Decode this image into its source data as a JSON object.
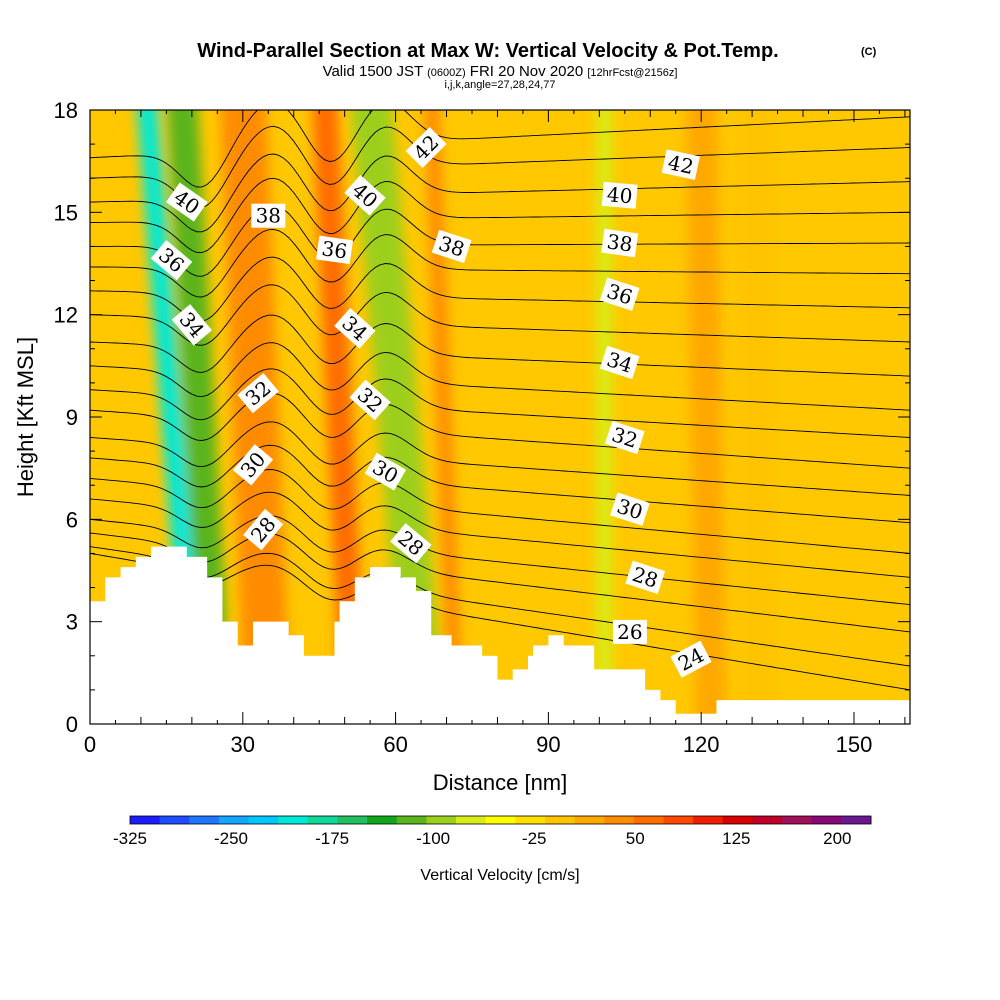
{
  "chart_data": {
    "type": "heatmap",
    "title": "Wind-Parallel Section at Max W: Vertical Velocity & Pot.Temp.",
    "title_mark": "(C)",
    "subtitle_main_a": "Valid 1500 JST",
    "subtitle_utc": "(0600Z)",
    "subtitle_main_b": "FRI 20 Nov 2020",
    "subtitle_fcst": "[12hrFcst@2156z]",
    "subtitle_indices": "i,j,k,angle=27,28,24,77",
    "xlabel": "Distance [nm]",
    "ylabel": "Height [Kft MSL]",
    "xlim": [
      0,
      161
    ],
    "ylim": [
      0,
      18
    ],
    "x_ticks": [
      0,
      30,
      60,
      90,
      120,
      150
    ],
    "x_tick_labels": [
      "0",
      "30",
      "60",
      "90",
      "120",
      "150"
    ],
    "y_ticks": [
      0,
      3,
      6,
      9,
      12,
      15,
      18
    ],
    "y_tick_labels": [
      "0",
      "3",
      "6",
      "9",
      "12",
      "15",
      "18"
    ],
    "colorbar": {
      "label": "Vertical Velocity [cm/s]",
      "min": -325,
      "max": 225,
      "step": 25,
      "tick_values": [
        -325,
        -250,
        -175,
        -100,
        -25,
        50,
        125,
        200
      ],
      "tick_labels": [
        "-325",
        "-250",
        "-175",
        "-100",
        "-25",
        "50",
        "125",
        "200"
      ],
      "colors": [
        "#1c1cff",
        "#1e4cff",
        "#1e78ff",
        "#12a6ff",
        "#00c8ff",
        "#00e8d8",
        "#10d898",
        "#22c060",
        "#10a81a",
        "#5ab41a",
        "#9ccf1c",
        "#d8ec18",
        "#ffff00",
        "#ffe000",
        "#ffc400",
        "#ffa800",
        "#ff8c00",
        "#ff6c00",
        "#ff4800",
        "#f01e00",
        "#d80000",
        "#c00028",
        "#a01058",
        "#880878",
        "#6a1890"
      ]
    },
    "velocity_bands": [
      {
        "x_top": 11,
        "x_bot": 21,
        "value": -180,
        "width": 4
      },
      {
        "x_top": 18,
        "x_bot": 25,
        "value": -80,
        "width": 6
      },
      {
        "x_top": 28,
        "x_bot": 33,
        "value": 150,
        "width": 4
      },
      {
        "x_top": 30,
        "x_bot": 35,
        "value": 90,
        "width": 9
      },
      {
        "x_top": 46,
        "x_bot": 52,
        "value": 110,
        "width": 5
      },
      {
        "x_top": 55,
        "x_bot": 64,
        "value": -165,
        "width": 4
      },
      {
        "x_top": 55,
        "x_bot": 66,
        "value": -70,
        "width": 8
      },
      {
        "x_top": 67,
        "x_bot": 72,
        "value": 90,
        "width": 3
      },
      {
        "x_top": 101,
        "x_bot": 101,
        "value": -35,
        "width": 3
      },
      {
        "x_top": 120,
        "x_bot": 122,
        "value": 55,
        "width": 6
      },
      {
        "x_top": 131,
        "x_bot": 131,
        "value": 25,
        "width": 7
      }
    ],
    "terrain": {
      "x": [
        0,
        3,
        3,
        6,
        6,
        9,
        9,
        12,
        12,
        19,
        19,
        23,
        23,
        26,
        26,
        29,
        29,
        32,
        32,
        39,
        39,
        42,
        42,
        48,
        48,
        49,
        49,
        52,
        52,
        55,
        55,
        61,
        61,
        64,
        64,
        67,
        67,
        71,
        71,
        77,
        77,
        80,
        80,
        83,
        83,
        86,
        86,
        87,
        87,
        90,
        90,
        93,
        93,
        99,
        99,
        109,
        109,
        112,
        112,
        115,
        115,
        118,
        118,
        123,
        123,
        141,
        141,
        161
      ],
      "h": [
        3.6,
        3.6,
        4.3,
        4.3,
        4.6,
        4.6,
        4.9,
        4.9,
        5.2,
        5.2,
        4.9,
        4.9,
        4.3,
        4.3,
        3.0,
        3.0,
        2.3,
        2.3,
        3.0,
        3.0,
        2.6,
        2.6,
        2.0,
        2.0,
        3.0,
        3.0,
        3.6,
        3.6,
        4.3,
        4.3,
        4.6,
        4.6,
        4.3,
        4.3,
        3.9,
        3.9,
        2.6,
        2.6,
        2.3,
        2.3,
        2.0,
        2.0,
        1.3,
        1.3,
        1.6,
        1.6,
        2.0,
        2.0,
        2.3,
        2.3,
        2.6,
        2.6,
        2.3,
        2.3,
        1.6,
        1.6,
        1.0,
        1.0,
        0.7,
        0.7,
        0.3,
        0.3,
        0.3,
        0.3,
        0.7,
        0.7,
        0.7,
        0.7
      ]
    },
    "theta_contours": {
      "levels": [
        24,
        25,
        26,
        27,
        28,
        29,
        30,
        31,
        32,
        33,
        34,
        35,
        36,
        37,
        38,
        39,
        40,
        41,
        42,
        43
      ],
      "start_heights": [
        5.0,
        5.2,
        5.6,
        6.0,
        6.6,
        7.2,
        7.8,
        8.4,
        9.2,
        9.8,
        10.5,
        11.2,
        12.0,
        12.7,
        13.4,
        14.0,
        14.7,
        15.3,
        16.0,
        16.6
      ],
      "end_heights": [
        1.0,
        1.7,
        2.7,
        3.5,
        4.3,
        5.0,
        5.9,
        6.7,
        7.5,
        8.4,
        9.2,
        10.2,
        11.2,
        12.2,
        13.2,
        14.1,
        15.0,
        15.9,
        16.9,
        17.8
      ]
    },
    "contour_labels": [
      {
        "text": "24",
        "x": 118,
        "y": 1.9,
        "angle": -28
      },
      {
        "text": "26",
        "x": 106,
        "y": 2.7,
        "angle": 0
      },
      {
        "text": "28",
        "x": 109,
        "y": 4.3,
        "angle": 18
      },
      {
        "text": "28",
        "x": 63,
        "y": 5.3,
        "angle": 40
      },
      {
        "text": "28",
        "x": 34,
        "y": 5.7,
        "angle": -50
      },
      {
        "text": "30",
        "x": 106,
        "y": 6.3,
        "angle": 18
      },
      {
        "text": "30",
        "x": 58,
        "y": 7.4,
        "angle": 30
      },
      {
        "text": "30",
        "x": 32,
        "y": 7.6,
        "angle": -50
      },
      {
        "text": "32",
        "x": 105,
        "y": 8.4,
        "angle": 18
      },
      {
        "text": "32",
        "x": 55,
        "y": 9.5,
        "angle": 42
      },
      {
        "text": "32",
        "x": 33,
        "y": 9.7,
        "angle": -40
      },
      {
        "text": "34",
        "x": 104,
        "y": 10.6,
        "angle": 18
      },
      {
        "text": "34",
        "x": 52,
        "y": 11.6,
        "angle": 42
      },
      {
        "text": "34",
        "x": 20,
        "y": 11.7,
        "angle": 50
      },
      {
        "text": "36",
        "x": 104,
        "y": 12.6,
        "angle": 18
      },
      {
        "text": "36",
        "x": 48,
        "y": 13.9,
        "angle": 8
      },
      {
        "text": "36",
        "x": 16,
        "y": 13.6,
        "angle": 40
      },
      {
        "text": "38",
        "x": 104,
        "y": 14.1,
        "angle": 8
      },
      {
        "text": "38",
        "x": 71,
        "y": 14.0,
        "angle": 18
      },
      {
        "text": "38",
        "x": 35,
        "y": 14.9,
        "angle": 0
      },
      {
        "text": "40",
        "x": 104,
        "y": 15.5,
        "angle": 5
      },
      {
        "text": "40",
        "x": 54,
        "y": 15.5,
        "angle": 42
      },
      {
        "text": "40",
        "x": 19,
        "y": 15.3,
        "angle": 35
      },
      {
        "text": "42",
        "x": 66,
        "y": 16.9,
        "angle": -45
      },
      {
        "text": "42",
        "x": 116,
        "y": 16.4,
        "angle": 12
      }
    ]
  }
}
